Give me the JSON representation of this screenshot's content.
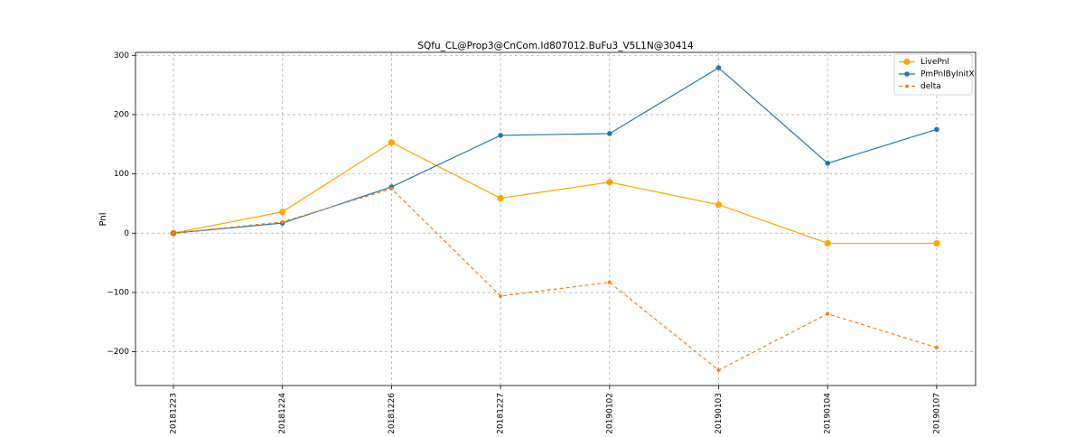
{
  "chart_data": {
    "type": "line",
    "title": "SQfu_CL@Prop3@CnCom.Id807012.BuFu3_V5L1N@30414",
    "xlabel": "",
    "ylabel": "Pnl",
    "categories": [
      "20181223",
      "20181224",
      "20181226",
      "20181227",
      "20190102",
      "20190103",
      "20190104",
      "20190107"
    ],
    "ylim": [
      -257,
      305
    ],
    "yticks": [
      -200,
      -100,
      0,
      100,
      200,
      300
    ],
    "ytick_labels": [
      "−200",
      "−100",
      "0",
      "100",
      "200",
      "300"
    ],
    "grid": true,
    "legend_position": "top-right",
    "series": [
      {
        "name": "LivePnl",
        "color": "#ffa500",
        "dashed": false,
        "marker_size": "large",
        "values": [
          0,
          36,
          153,
          59,
          86,
          48,
          -17,
          -17
        ]
      },
      {
        "name": "PmPnlByInitX",
        "color": "#1f77b4",
        "dashed": false,
        "marker_size": "medium",
        "values": [
          0,
          17,
          78,
          165,
          168,
          279,
          118,
          175
        ]
      },
      {
        "name": "delta",
        "color": "#ff7f0e",
        "dashed": true,
        "marker_size": "small",
        "values": [
          0,
          19,
          75,
          -106,
          -83,
          -231,
          -136,
          -193
        ]
      }
    ]
  }
}
